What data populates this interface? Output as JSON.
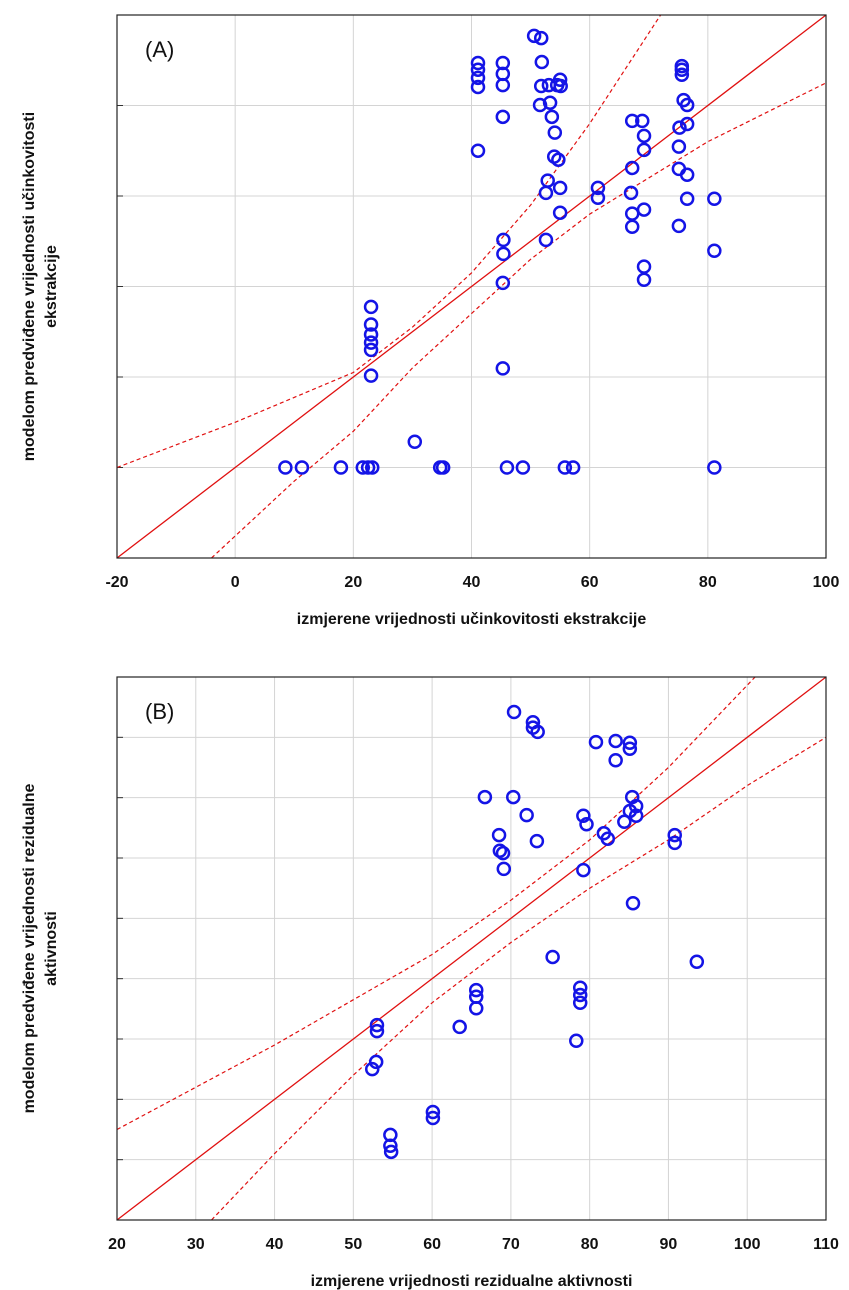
{
  "chart_data": [
    {
      "type": "scatter",
      "annotation": "(A)",
      "xlabel": "izmjerene vrijednosti učinkovitosti ekstrakcije",
      "ylabel": [
        "modelom predviđene vrijednosti učinkovitosti",
        "ekstrakcije"
      ],
      "xlim": [
        -20,
        100
      ],
      "xticks": [
        -20,
        0,
        20,
        40,
        60,
        80,
        100
      ],
      "ylim": [
        -20,
        100
      ],
      "yticks": [
        -20,
        0,
        20,
        40,
        60,
        80,
        100
      ],
      "grid": true,
      "color": "#1414e6",
      "line_color": "#e01010",
      "x": [
        8.5,
        11.3,
        17.9,
        21.6,
        22.5,
        23.2,
        34.7,
        35.2,
        46,
        48.7,
        55.8,
        57.2,
        81.1,
        30.4,
        23,
        23,
        23,
        23,
        23,
        23,
        45.3,
        45.3,
        45.4,
        45.4,
        41.1,
        41.1,
        41.1,
        41.1,
        41.1,
        45.3,
        45.3,
        45.3,
        45.3,
        50.6,
        51.8,
        51.9,
        51.8,
        51.6,
        53.1,
        53.3,
        53.6,
        54.1,
        54.5,
        55.0,
        55.1,
        54.0,
        54.7,
        52.9,
        55.0,
        52.6,
        55.0,
        52.6,
        61.4,
        61.4,
        67.2,
        68.9,
        69.2,
        69.2,
        67.2,
        67.0,
        67.2,
        67.2,
        69.2,
        69.2,
        69.2,
        75.6,
        75.6,
        75.6,
        75.9,
        76.5,
        75.2,
        76.5,
        75.1,
        75.1,
        76.5,
        76.5,
        75.1,
        81.1,
        81.1
      ],
      "values": [
        0,
        0,
        0,
        0,
        0,
        0,
        0,
        0,
        0,
        0,
        0,
        0,
        0,
        5.7,
        20.3,
        26,
        27.6,
        29.4,
        31.6,
        35.5,
        21.9,
        40.8,
        47.2,
        50.3,
        70,
        84.1,
        86.1,
        87.9,
        89.4,
        77.5,
        84.5,
        87,
        89.4,
        95.4,
        94.9,
        89.6,
        84.3,
        80.1,
        84.5,
        80.6,
        77.5,
        74.0,
        84.5,
        85.7,
        84.3,
        68.7,
        68.0,
        63.4,
        61.8,
        60.7,
        56.3,
        50.3,
        61.8,
        59.6,
        76.6,
        76.6,
        73.3,
        70.2,
        66.2,
        60.7,
        56.1,
        53.2,
        57.0,
        44.4,
        41.5,
        88.7,
        87.9,
        86.8,
        81.2,
        80.1,
        75.1,
        75.9,
        70.9,
        66.0,
        64.7,
        59.4,
        53.4,
        59.4,
        47.9
      ],
      "lines": [
        {
          "x": [
            -20,
            0,
            20,
            30,
            40,
            50,
            60,
            72
          ],
          "values": [
            0,
            10,
            21,
            31,
            43,
            58,
            76,
            100
          ]
        },
        {
          "x": [
            -4,
            10,
            20,
            30,
            40,
            50,
            60,
            80,
            100
          ],
          "values": [
            -20,
            -3,
            8,
            22,
            34,
            46,
            56,
            72,
            85
          ]
        }
      ]
    },
    {
      "type": "scatter",
      "annotation": "(B)",
      "xlabel": "izmjerene vrijednosti rezidualne aktivnosti",
      "ylabel": [
        "modelom predviđene vrijednosti rezidualne",
        "aktivnosti"
      ],
      "xlim": [
        20,
        110
      ],
      "xticks": [
        20,
        30,
        40,
        50,
        60,
        70,
        80,
        90,
        100,
        110
      ],
      "ylim": [
        20,
        110
      ],
      "yticks": [
        20,
        30,
        40,
        50,
        60,
        70,
        80,
        90,
        100,
        110
      ],
      "grid": true,
      "color": "#1414e6",
      "line_color": "#e01010",
      "x": [
        70.4,
        72.8,
        72.8,
        73.4,
        80.8,
        83.3,
        85.1,
        85.1,
        83.3,
        70.3,
        66.7,
        72.0,
        68.5,
        68.6,
        69.0,
        69.1,
        73.3,
        79.2,
        79.6,
        81.8,
        82.3,
        85.4,
        85.1,
        84.4,
        85.9,
        85.9,
        90.8,
        90.8,
        79.2,
        85.5,
        75.3,
        93.6,
        65.6,
        65.6,
        65.6,
        78.8,
        78.8,
        78.8,
        63.5,
        78.3,
        53.0,
        53.0,
        52.9,
        52.4,
        60.1,
        60.1,
        54.7,
        54.7,
        54.8
      ],
      "values": [
        104.2,
        102.5,
        101.6,
        100.9,
        99.2,
        99.4,
        99.1,
        98.1,
        96.2,
        90.1,
        90.1,
        87.1,
        83.8,
        81.2,
        80.8,
        78.2,
        82.8,
        87.0,
        85.6,
        84.1,
        83.2,
        90.1,
        87.8,
        86.0,
        87.0,
        88.6,
        83.8,
        82.5,
        78.0,
        72.5,
        63.6,
        62.8,
        58.1,
        57.0,
        55.1,
        58.5,
        57.3,
        56.0,
        52.0,
        49.7,
        52.3,
        51.3,
        46.2,
        45.0,
        37.9,
        36.9,
        34.1,
        32.3,
        31.3
      ],
      "lines": [
        {
          "x": [
            20,
            40,
            60,
            70,
            80,
            90,
            101
          ],
          "values": [
            35,
            49,
            64,
            73,
            83,
            95,
            110
          ]
        },
        {
          "x": [
            32,
            40,
            50,
            60,
            70,
            80,
            90,
            100,
            110
          ],
          "values": [
            20,
            31,
            44,
            56,
            66,
            75,
            83,
            92,
            100
          ]
        }
      ]
    }
  ]
}
